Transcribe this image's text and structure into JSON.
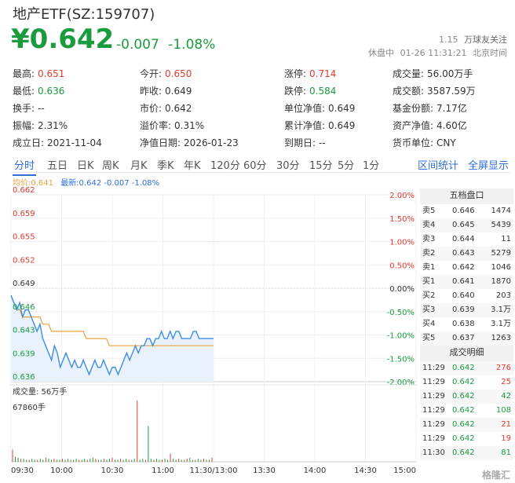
{
  "header": {
    "title": "地产ETF(SZ:159707)",
    "price": "¥0.642",
    "change": "-0.007",
    "change_pct": "-1.08%",
    "page_index": "1.15",
    "follower_text": "万球友关注",
    "status": "休盘中",
    "datetime": "01-26 11:31:21",
    "tz": "北京时间"
  },
  "stats": [
    [
      {
        "label": "最高:",
        "value": "0.651",
        "color": "red"
      },
      {
        "label": "今开:",
        "value": "0.650",
        "color": "red"
      },
      {
        "label": "涨停:",
        "value": "0.714",
        "color": "red"
      },
      {
        "label": "成交量:",
        "value": "56.00万手",
        "color": ""
      }
    ],
    [
      {
        "label": "最低:",
        "value": "0.636",
        "color": "green"
      },
      {
        "label": "昨收:",
        "value": "0.649",
        "color": ""
      },
      {
        "label": "跌停:",
        "value": "0.584",
        "color": "green"
      },
      {
        "label": "成交额:",
        "value": "3587.59万",
        "color": ""
      }
    ],
    [
      {
        "label": "换手:",
        "value": "--",
        "color": ""
      },
      {
        "label": "市价:",
        "value": "0.642",
        "color": ""
      },
      {
        "label": "单位净值:",
        "value": "0.649",
        "color": ""
      },
      {
        "label": "基金份额:",
        "value": "7.17亿",
        "color": ""
      }
    ],
    [
      {
        "label": "振幅:",
        "value": "2.31%",
        "color": ""
      },
      {
        "label": "溢价率:",
        "value": "0.31%",
        "color": ""
      },
      {
        "label": "累计净值:",
        "value": "0.649",
        "color": ""
      },
      {
        "label": "资产净值:",
        "value": "4.60亿",
        "color": ""
      }
    ],
    [
      {
        "label": "成立日:",
        "value": "2021-11-04",
        "color": ""
      },
      {
        "label": "净值日期:",
        "value": "2026-01-23",
        "color": ""
      },
      {
        "label": "到期日:",
        "value": "--",
        "color": ""
      },
      {
        "label": "货币单位:",
        "value": "CNY",
        "color": ""
      }
    ]
  ],
  "tabs": [
    "分时",
    "五日",
    "日K",
    "周K",
    "月K",
    "季K",
    "年K",
    "120分",
    "60分",
    "30分",
    "15分",
    "5分",
    "1分"
  ],
  "active_tab": "分时",
  "tab_right": [
    "区间统计",
    "全屏显示"
  ],
  "legend": {
    "avg": "均价:0.641",
    "latest": "最新:0.642 -0.007 -1.08%"
  },
  "colors": {
    "up": "#e23a2e",
    "down": "#1a9c3e",
    "accent": "#2f6fd6",
    "avg_line": "#e8a33c"
  },
  "chart_data": {
    "type": "line",
    "y_left_ticks": [
      "0.662",
      "0.659",
      "0.655",
      "0.652",
      "0.649",
      "0.646",
      "0.643",
      "0.639",
      "0.636"
    ],
    "y_right_ticks": [
      "2.00%",
      "1.50%",
      "1.00%",
      "0.50%",
      "0.00%",
      "-0.50%",
      "-1.00%",
      "-1.50%",
      "-2.00%"
    ],
    "x_ticks": [
      "09:30",
      "10:00",
      "10:30",
      "11:00",
      "11:30/13:00",
      "13:30",
      "14:00",
      "14:30",
      "15:00"
    ],
    "ylim": [
      0.636,
      0.662
    ],
    "prev_close": 0.649,
    "series": [
      {
        "name": "最新",
        "values": [
          0.648,
          0.647,
          0.646,
          0.647,
          0.645,
          0.646,
          0.646,
          0.645,
          0.644,
          0.643,
          0.644,
          0.642,
          0.641,
          0.64,
          0.639,
          0.641,
          0.64,
          0.638,
          0.639,
          0.64,
          0.639,
          0.638,
          0.639,
          0.638,
          0.638,
          0.639,
          0.638,
          0.637,
          0.638,
          0.639,
          0.638,
          0.638,
          0.639,
          0.638,
          0.637,
          0.638,
          0.638,
          0.637,
          0.638,
          0.639,
          0.64,
          0.639,
          0.64,
          0.641,
          0.64,
          0.641,
          0.641,
          0.642,
          0.642,
          0.641,
          0.642,
          0.642,
          0.643,
          0.642,
          0.642,
          0.643,
          0.642,
          0.643,
          0.643,
          0.642,
          0.642,
          0.642,
          0.642,
          0.643,
          0.643,
          0.642,
          0.642,
          0.642,
          0.642,
          0.642,
          0.642
        ]
      },
      {
        "name": "均价",
        "values": [
          0.648,
          0.647,
          0.646,
          0.646,
          0.645,
          0.645,
          0.645,
          0.645,
          0.645,
          0.645,
          0.645,
          0.644,
          0.644,
          0.644,
          0.643,
          0.643,
          0.643,
          0.643,
          0.643,
          0.643,
          0.643,
          0.643,
          0.643,
          0.643,
          0.643,
          0.643,
          0.642,
          0.642,
          0.642,
          0.642,
          0.642,
          0.642,
          0.642,
          0.642,
          0.641,
          0.641,
          0.641,
          0.641,
          0.641,
          0.641,
          0.641,
          0.641,
          0.641,
          0.641,
          0.641,
          0.641,
          0.641,
          0.641,
          0.641,
          0.641,
          0.641,
          0.641,
          0.641,
          0.641,
          0.641,
          0.641,
          0.641,
          0.641,
          0.641,
          0.641,
          0.641,
          0.641,
          0.641,
          0.641,
          0.641,
          0.641,
          0.641,
          0.641,
          0.641,
          0.641,
          0.641
        ]
      }
    ],
    "volume_label": "成交量: 56万手",
    "volume_max_label": "67860手",
    "volume_values": [
      12,
      5,
      4,
      3,
      3,
      2,
      2,
      3,
      2,
      2,
      3,
      2,
      4,
      3,
      2,
      3,
      2,
      2,
      3,
      2,
      3,
      2,
      2,
      3,
      2,
      2,
      3,
      2,
      3,
      4,
      3,
      2,
      2,
      3,
      2,
      3,
      4,
      2,
      2,
      3,
      2,
      3,
      2,
      2,
      3,
      60,
      2,
      3,
      2,
      35,
      3,
      2,
      3,
      2,
      2,
      3,
      2,
      8,
      3,
      2,
      3,
      2,
      2,
      3,
      4,
      2,
      2,
      3,
      2,
      3,
      2,
      2,
      4
    ]
  },
  "order_book": {
    "title": "五档盘口",
    "asks": [
      {
        "label": "卖5",
        "price": "0.646",
        "vol": "1474"
      },
      {
        "label": "卖4",
        "price": "0.645",
        "vol": "5439"
      },
      {
        "label": "卖3",
        "price": "0.644",
        "vol": "11"
      },
      {
        "label": "卖2",
        "price": "0.643",
        "vol": "5279"
      },
      {
        "label": "卖1",
        "price": "0.642",
        "vol": "1046"
      }
    ],
    "bids": [
      {
        "label": "买1",
        "price": "0.641",
        "vol": "1870"
      },
      {
        "label": "买2",
        "price": "0.640",
        "vol": "203"
      },
      {
        "label": "买3",
        "price": "0.639",
        "vol": "3.1万"
      },
      {
        "label": "买4",
        "price": "0.638",
        "vol": "3.1万"
      },
      {
        "label": "买5",
        "price": "0.637",
        "vol": "1263"
      }
    ]
  },
  "trades": {
    "title": "成交明细",
    "rows": [
      {
        "time": "11:29",
        "price": "0.642",
        "vol": "276"
      },
      {
        "time": "11:29",
        "price": "0.642",
        "vol": "25"
      },
      {
        "time": "11:29",
        "price": "0.642",
        "vol": "42"
      },
      {
        "time": "11:29",
        "price": "0.642",
        "vol": "108"
      },
      {
        "time": "11:29",
        "price": "0.642",
        "vol": "21"
      },
      {
        "time": "11:29",
        "price": "0.642",
        "vol": "19"
      },
      {
        "time": "11:30",
        "price": "0.642",
        "vol": "81"
      }
    ]
  },
  "watermark": "格隆汇"
}
